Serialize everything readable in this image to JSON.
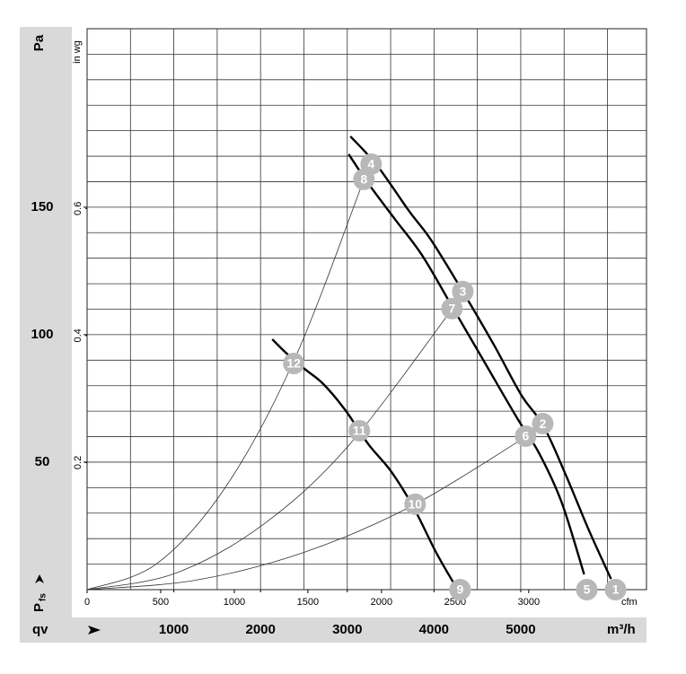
{
  "chart_data": {
    "type": "line",
    "ylabel": "Pa",
    "y2label": "in wg",
    "xlabel": "m³/h",
    "x2label": "cfm",
    "y_symbol": "P",
    "y_symbol_sub": "fs",
    "x_symbol": "qv",
    "xlim": [
      0,
      6450
    ],
    "xticks": [
      1000,
      2000,
      3000,
      4000,
      5000
    ],
    "x2lim": [
      0,
      3800
    ],
    "x2ticks": [
      0,
      500,
      1000,
      1500,
      2000,
      2500,
      3000
    ],
    "ylim": [
      0,
      220
    ],
    "yticks": [
      50,
      100,
      150
    ],
    "y2lim": [
      0,
      0.883
    ],
    "y2ticks": [
      0.2,
      0.4,
      0.6
    ],
    "xgrid": [
      500,
      1000,
      1500,
      2000,
      2500,
      3000,
      3500,
      4000,
      4500,
      5000,
      5500,
      6000
    ],
    "ygrid": [
      10,
      20,
      30,
      40,
      50,
      60,
      70,
      80,
      90,
      100,
      110,
      120,
      130,
      140,
      150,
      160,
      170,
      180,
      190,
      200,
      210
    ],
    "series": [
      {
        "color": "#000000",
        "x": [
          3036,
          3347,
          3710,
          3969,
          4332,
          4694,
          5005,
          5264,
          5523,
          5782,
          6041
        ],
        "values": [
          177.8,
          166.2,
          148.6,
          137,
          116.9,
          95.8,
          76.4,
          64.1,
          44.7,
          23.6,
          4.2
        ]
      },
      {
        "color": "#000000",
        "x": [
          3016,
          3244,
          3554,
          3865,
          4228,
          4591,
          4953,
          5212,
          5472,
          5731
        ],
        "values": [
          170.8,
          159.2,
          145.1,
          131,
          109.9,
          88.7,
          67.6,
          53.5,
          34.2,
          6.0
        ]
      },
      {
        "color": "#000000",
        "x": [
          2135,
          2311,
          2518,
          2725,
          2984,
          3244,
          3503,
          3762,
          4021,
          4228
        ],
        "values": [
          98.2,
          92.3,
          86.3,
          80.6,
          70.1,
          57,
          46.5,
          32.4,
          14.8,
          2.5
        ]
      }
    ],
    "system_curves": [
      {
        "color": "#333333",
        "x": [
          0,
          800,
          1600,
          2400,
          3192
        ],
        "values": [
          0,
          10.1,
          40.4,
          91.0,
          160.9
        ]
      },
      {
        "color": "#333333",
        "x": [
          0,
          1000,
          2000,
          3000,
          4207
        ],
        "values": [
          0,
          6.2,
          24.8,
          55.9,
          109.9
        ]
      },
      {
        "color": "#333333",
        "x": [
          0,
          1250,
          2500,
          3750,
          5057
        ],
        "values": [
          0,
          3.7,
          14.6,
          32.9,
          59.9
        ]
      }
    ],
    "markers": [
      {
        "label": "1",
        "x": 6093,
        "y": 0
      },
      {
        "label": "2",
        "x": 5254,
        "y": 65.1
      },
      {
        "label": "3",
        "x": 4332,
        "y": 116.9
      },
      {
        "label": "4",
        "x": 3275,
        "y": 166.9
      },
      {
        "label": "5",
        "x": 5762,
        "y": 0
      },
      {
        "label": "6",
        "x": 5057,
        "y": 60.2
      },
      {
        "label": "7",
        "x": 4207,
        "y": 110.2
      },
      {
        "label": "8",
        "x": 3192,
        "y": 160.9
      },
      {
        "label": "9",
        "x": 4301,
        "y": 0
      },
      {
        "label": "10",
        "x": 3782,
        "y": 33.5
      },
      {
        "label": "11",
        "x": 3140,
        "y": 62.3
      },
      {
        "label": "12",
        "x": 2383,
        "y": 88.7
      }
    ],
    "marker_color": "#b8b8b8"
  }
}
